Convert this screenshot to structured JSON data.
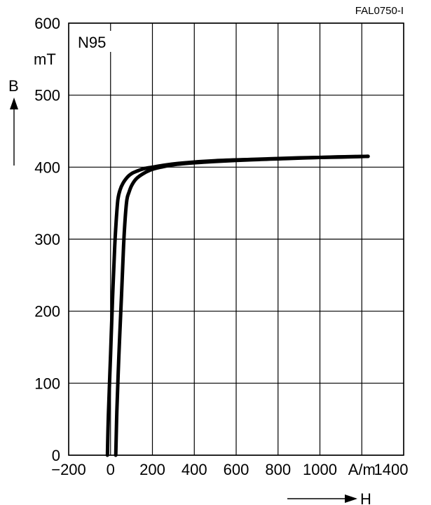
{
  "figure_id": "FAL0750-I",
  "chart_data": {
    "type": "line",
    "title": "",
    "material": "N95",
    "xlabel": "H",
    "ylabel": "B",
    "x_unit": "A/m",
    "y_unit": "mT",
    "xlim": [
      -200,
      1400
    ],
    "ylim": [
      0,
      600
    ],
    "x_ticks": [
      -200,
      0,
      200,
      400,
      600,
      800,
      1000,
      1200,
      1400
    ],
    "x_tick_labels": [
      "−200",
      "0",
      "200",
      "400",
      "600",
      "800",
      "1000",
      "A/m",
      "1400"
    ],
    "y_ticks": [
      0,
      100,
      200,
      300,
      400,
      500,
      600
    ],
    "y_tick_labels": [
      "0",
      "100",
      "200",
      "300",
      "400",
      "500",
      "600"
    ],
    "grid": true,
    "series": [
      {
        "branch": "left",
        "x": [
          -15,
          -10,
          0,
          10,
          20,
          28,
          35,
          45,
          60,
          80,
          100,
          130,
          160,
          200,
          260,
          350,
          500,
          700,
          900,
          1100,
          1230
        ],
        "y": [
          0,
          60,
          140,
          220,
          290,
          330,
          355,
          368,
          378,
          386,
          391,
          395,
          398,
          400,
          403,
          406,
          409,
          411,
          413,
          414,
          415
        ]
      },
      {
        "branch": "right",
        "x": [
          25,
          30,
          40,
          52,
          62,
          70,
          78,
          88,
          100,
          120,
          150,
          190,
          240,
          320,
          450,
          650,
          850,
          1050,
          1230
        ],
        "y": [
          0,
          60,
          140,
          220,
          290,
          330,
          355,
          365,
          374,
          383,
          390,
          396,
          400,
          404,
          407,
          410,
          412,
          414,
          415
        ]
      }
    ]
  }
}
